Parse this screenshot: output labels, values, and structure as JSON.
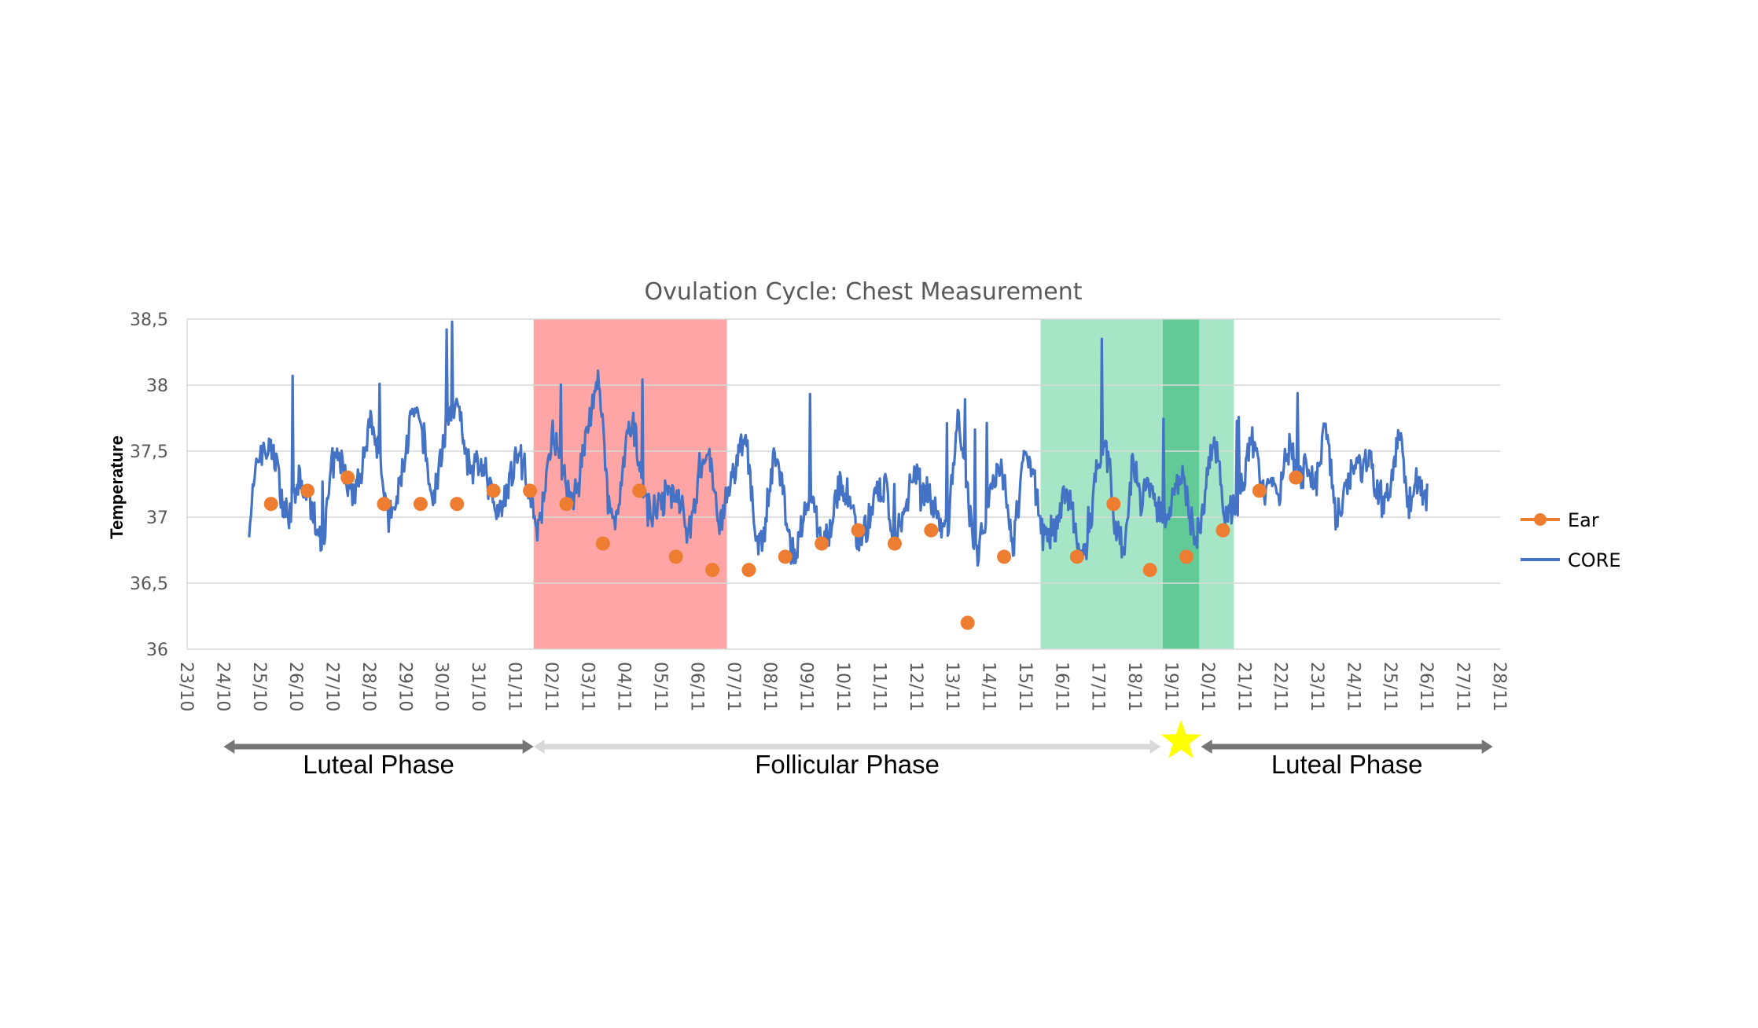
{
  "chart_data": {
    "type": "line",
    "title": "Ovulation Cycle: Chest Measurement",
    "ylabel": "Temperature",
    "xlabel": "",
    "ylim": [
      36,
      38.5
    ],
    "grid": true,
    "legend_position": "right",
    "y_ticks": [
      "36",
      "36,5",
      "37",
      "37,5",
      "38",
      "38,5"
    ],
    "x_ticks": [
      "23/10",
      "24/10",
      "25/10",
      "26/10",
      "27/10",
      "28/10",
      "29/10",
      "30/10",
      "31/10",
      "01/11",
      "02/11",
      "03/11",
      "04/11",
      "05/11",
      "06/11",
      "07/11",
      "08/11",
      "09/11",
      "10/11",
      "11/11",
      "12/11",
      "13/11",
      "14/11",
      "15/11",
      "16/11",
      "17/11",
      "18/11",
      "19/11",
      "20/11",
      "21/11",
      "22/11",
      "23/11",
      "24/11",
      "25/11",
      "26/11",
      "27/11",
      "28/11"
    ],
    "colors": {
      "core": "#4472C4",
      "ear": "#ED7D31",
      "menstruation_band": "#FF7F7F",
      "fertile_band": "#5CCF95",
      "ovulation_band": "#2EB873",
      "grid": "#D9D9D9",
      "phase_luteal_arrow": "#767676",
      "phase_follicular_arrow": "#D9D9D9",
      "star": "#FFFF00"
    },
    "shaded_regions": [
      {
        "x_start": 9.5,
        "x_end": 14.8,
        "kind": "menstruation_band"
      },
      {
        "x_start": 23.4,
        "x_end": 26.75,
        "kind": "fertile_band"
      },
      {
        "x_start": 26.75,
        "x_end": 27.75,
        "kind": "ovulation_band"
      },
      {
        "x_start": 27.75,
        "x_end": 28.7,
        "kind": "fertile_band"
      }
    ],
    "series": [
      {
        "name": "Ear",
        "kind": "markers",
        "points": [
          [
            2.3,
            37.1
          ],
          [
            3.3,
            37.2
          ],
          [
            4.4,
            37.3
          ],
          [
            5.4,
            37.1
          ],
          [
            6.4,
            37.1
          ],
          [
            7.4,
            37.1
          ],
          [
            8.4,
            37.2
          ],
          [
            9.4,
            37.2
          ],
          [
            10.4,
            37.1
          ],
          [
            11.4,
            36.8
          ],
          [
            12.4,
            37.2
          ],
          [
            13.4,
            36.7
          ],
          [
            14.4,
            36.6
          ],
          [
            15.4,
            36.6
          ],
          [
            16.4,
            36.7
          ],
          [
            17.4,
            36.8
          ],
          [
            18.4,
            36.9
          ],
          [
            19.4,
            36.8
          ],
          [
            20.4,
            36.9
          ],
          [
            21.4,
            36.2
          ],
          [
            22.4,
            36.7
          ],
          [
            24.4,
            36.7
          ],
          [
            25.4,
            37.1
          ],
          [
            26.4,
            36.6
          ],
          [
            27.4,
            36.7
          ],
          [
            28.4,
            36.9
          ],
          [
            29.4,
            37.2
          ],
          [
            30.4,
            37.3
          ]
        ]
      },
      {
        "name": "CORE",
        "kind": "line",
        "x_start": 1.7,
        "x_end": 34.0,
        "base_values": [
          37.2,
          37.4,
          37.3,
          37.5,
          37.2,
          37.1,
          37.0,
          37.1,
          37.0,
          37.3,
          37.2,
          37.3,
          37.5,
          37.6,
          37.4,
          37.1,
          37.3,
          37.4,
          37.6,
          37.7,
          37.3,
          37.4,
          37.7,
          37.9,
          37.5,
          37.3,
          37.1,
          37.2,
          37.4,
          37.3,
          37.2,
          37.1,
          37.3,
          37.5,
          37.2,
          37.3,
          37.5,
          37.6,
          37.9,
          37.3,
          37.1,
          37.4,
          37.5,
          37.3,
          37.2,
          36.9,
          37.1,
          37.3,
          37.0,
          37.2,
          37.4,
          37.1,
          37.3,
          37.2,
          37.5,
          37.1,
          37.0,
          37.3,
          37.1,
          36.9,
          37.0,
          36.9,
          36.8,
          37.1,
          37.3,
          37.0,
          36.8,
          37.1,
          37.2,
          37.0,
          36.8,
          37.2,
          37.4,
          37.0,
          37.1,
          37.2,
          37.0,
          37.5,
          37.2,
          36.9,
          37.0,
          37.1,
          37.3,
          37.0,
          37.4,
          37.2,
          36.9,
          37.1,
          37.0,
          37.0,
          36.8,
          36.9,
          37.3,
          37.4,
          37.0,
          37.0,
          37.4,
          36.9,
          37.3,
          37.2,
          37.0,
          37.1,
          37.2,
          37.0,
          37.2,
          37.4,
          37.1,
          37.3,
          37.2,
          37.4,
          37.3,
          37.5,
          37.1,
          37.3,
          37.4,
          37.6,
          37.2,
          37.5,
          37.1,
          37.4,
          37.3,
          37.2,
          37.5,
          37.3,
          37.1,
          37.4,
          37.2,
          37.5,
          37.0
        ]
      }
    ],
    "phases": [
      {
        "label": "Luteal Phase",
        "x_start": 1.0,
        "x_end": 9.5,
        "style": "phase_luteal_arrow"
      },
      {
        "label": "Follicular Phase",
        "x_start": 9.5,
        "x_end": 26.7,
        "style": "phase_follicular_arrow"
      },
      {
        "label": "Luteal Phase",
        "x_start": 27.8,
        "x_end": 35.8,
        "style": "phase_luteal_arrow"
      }
    ],
    "ovulation_marker": {
      "x": 27.25,
      "icon": "star-icon"
    }
  }
}
